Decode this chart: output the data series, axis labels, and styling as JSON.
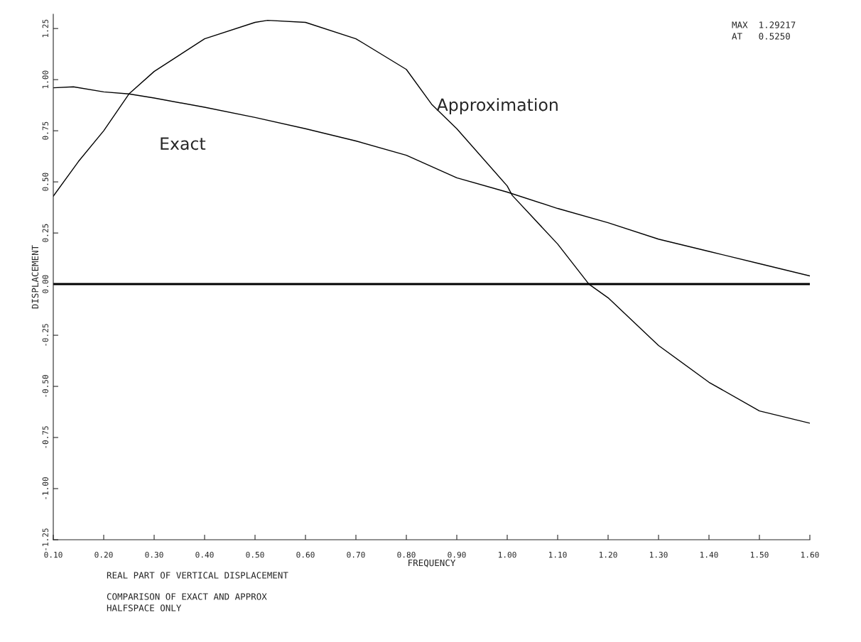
{
  "chart_data": {
    "type": "line",
    "xlabel": "FREQUENCY",
    "ylabel": "DISPLACEMENT",
    "series": [
      {
        "name": "Exact",
        "color": "#000000",
        "x": [
          0.1,
          0.14,
          0.2,
          0.25,
          0.3,
          0.4,
          0.5,
          0.6,
          0.7,
          0.8,
          0.9,
          1.0,
          1.1,
          1.2,
          1.3,
          1.4,
          1.5,
          1.6
        ],
        "values": [
          0.96,
          0.965,
          0.94,
          0.93,
          0.91,
          0.865,
          0.815,
          0.76,
          0.7,
          0.63,
          0.52,
          0.45,
          0.37,
          0.3,
          0.22,
          0.16,
          0.1,
          0.04
        ]
      },
      {
        "name": "Approximation",
        "color": "#000000",
        "x": [
          0.1,
          0.15,
          0.2,
          0.25,
          0.3,
          0.4,
          0.5,
          0.525,
          0.6,
          0.7,
          0.8,
          0.85,
          0.9,
          1.0,
          1.01,
          1.1,
          1.162,
          1.2,
          1.3,
          1.4,
          1.5,
          1.6
        ],
        "values": [
          0.43,
          0.6,
          0.75,
          0.93,
          1.04,
          1.2,
          1.28,
          1.29,
          1.28,
          1.2,
          1.05,
          0.88,
          0.76,
          0.48,
          0.434,
          0.196,
          0.0,
          -0.067,
          -0.3,
          -0.48,
          -0.62,
          -0.68
        ]
      }
    ],
    "xlim": [
      0.1,
      1.6
    ],
    "xticks": [
      {
        "value": 0.1,
        "label": "0.10"
      },
      {
        "value": 0.2,
        "label": "0.20"
      },
      {
        "value": 0.3,
        "label": "0.30"
      },
      {
        "value": 0.4,
        "label": "0.40"
      },
      {
        "value": 0.5,
        "label": "0.50"
      },
      {
        "value": 0.6,
        "label": "0.60"
      },
      {
        "value": 0.7,
        "label": "0.70"
      },
      {
        "value": 0.8,
        "label": "0.80"
      },
      {
        "value": 0.9,
        "label": "0.90"
      },
      {
        "value": 1.0,
        "label": "1.00"
      },
      {
        "value": 1.1,
        "label": "1.10"
      },
      {
        "value": 1.2,
        "label": "1.20"
      },
      {
        "value": 1.3,
        "label": "1.30"
      },
      {
        "value": 1.4,
        "label": "1.40"
      },
      {
        "value": 1.5,
        "label": "1.50"
      },
      {
        "value": 1.6,
        "label": "1.60"
      }
    ],
    "ylim": [
      -1.25,
      1.32
    ],
    "yticks": [
      {
        "value": -1.25,
        "label": "-1.25"
      },
      {
        "value": -1.0,
        "label": "-1.00"
      },
      {
        "value": -0.75,
        "label": "-0.75"
      },
      {
        "value": -0.5,
        "label": "-0.50"
      },
      {
        "value": -0.25,
        "label": "-0.25"
      },
      {
        "value": 0.0,
        "label": "0.00"
      },
      {
        "value": 0.25,
        "label": "0.25"
      },
      {
        "value": 0.5,
        "label": "0.50"
      },
      {
        "value": 0.75,
        "label": "0.75"
      },
      {
        "value": 1.0,
        "label": "1.00"
      },
      {
        "value": 1.25,
        "label": "1.25"
      }
    ],
    "ref_lines": [
      {
        "axis": "y",
        "value": 0,
        "color": "#000000"
      }
    ],
    "grid": false,
    "legend": false,
    "marker": "none",
    "line_style": "solid",
    "annotations": [
      "MAX  1.29217\nAT   0.5250",
      "REAL PART OF VERTICAL DISPLACEMENT",
      "COMPARISON OF EXACT AND APPROX\nHALFSPACE ONLY"
    ]
  }
}
